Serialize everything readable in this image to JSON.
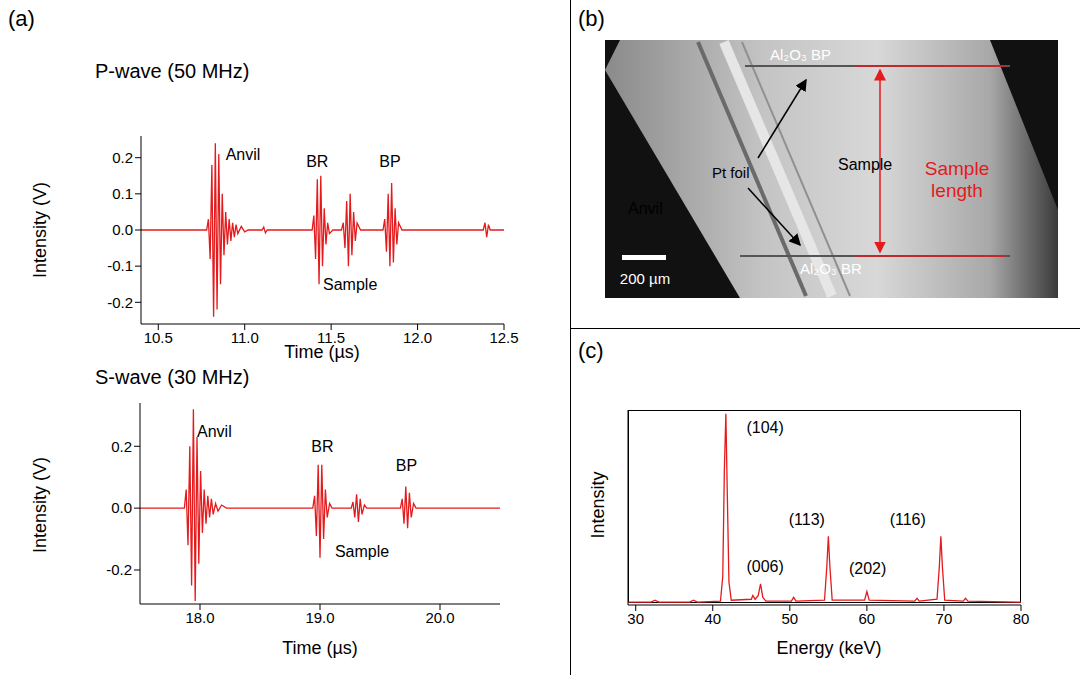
{
  "chart_data": [
    {
      "type": "line",
      "panel_label": "(a)",
      "title": "P-wave (50 MHz)",
      "x_label": "Time (µs)",
      "y_label": "Intensity (V)",
      "color": "#e41a1c",
      "xlim": [
        10.4,
        12.5
      ],
      "xticks": [
        10.5,
        {
          "value": 11,
          "label": "11.0"
        },
        11.5,
        {
          "value": 12,
          "label": "12.0"
        },
        12.5
      ],
      "ylim": [
        -0.26,
        0.26
      ],
      "yticks": [
        -0.2,
        -0.1,
        {
          "value": 0,
          "label": "0.0"
        },
        0.1,
        0.2
      ],
      "grid": false,
      "x": [
        10.4,
        10.78,
        10.79,
        10.8,
        10.81,
        10.82,
        10.83,
        10.84,
        10.85,
        10.86,
        10.87,
        10.88,
        10.89,
        10.9,
        10.91,
        10.92,
        10.93,
        10.94,
        10.95,
        10.96,
        10.98,
        11.0,
        11.02,
        11.1,
        11.11,
        11.12,
        11.13,
        11.39,
        11.4,
        11.41,
        11.42,
        11.43,
        11.44,
        11.45,
        11.46,
        11.47,
        11.48,
        11.49,
        11.51,
        11.56,
        11.57,
        11.58,
        11.59,
        11.6,
        11.61,
        11.62,
        11.63,
        11.64,
        11.65,
        11.67,
        11.8,
        11.81,
        11.82,
        11.83,
        11.84,
        11.85,
        11.86,
        11.87,
        11.88,
        11.89,
        11.91,
        12.38,
        12.39,
        12.4,
        12.41,
        12.42,
        12.5
      ],
      "values": [
        0,
        0,
        0.03,
        -0.08,
        0.18,
        -0.24,
        0.24,
        -0.22,
        0.21,
        -0.15,
        0.1,
        -0.07,
        0.05,
        -0.04,
        0.03,
        -0.03,
        0.02,
        -0.02,
        0.015,
        -0.01,
        0.01,
        -0.005,
        0,
        0,
        0.008,
        -0.008,
        0,
        0,
        0.04,
        -0.08,
        0.14,
        -0.15,
        0.15,
        -0.1,
        0.06,
        -0.04,
        0.02,
        -0.01,
        0,
        0,
        0.02,
        -0.05,
        0.08,
        -0.1,
        0.1,
        -0.07,
        0.05,
        -0.03,
        0.02,
        0,
        0,
        0.03,
        -0.06,
        0.1,
        -0.1,
        0.13,
        -0.09,
        0.06,
        -0.04,
        0.02,
        0,
        0,
        0.02,
        -0.02,
        0.015,
        0,
        0
      ],
      "annotations": [
        {
          "text": "Anvil",
          "x": 10.99,
          "y": 0.21
        },
        {
          "text": "BR",
          "x": 11.42,
          "y": 0.19
        },
        {
          "text": "Sample",
          "x": 11.61,
          "y": -0.15
        },
        {
          "text": "BP",
          "x": 11.84,
          "y": 0.19
        }
      ]
    },
    {
      "type": "line",
      "title": "S-wave (30 MHz)",
      "x_label": "Time (µs)",
      "y_label": "Intensity (V)",
      "color": "#e41a1c",
      "xlim": [
        17.5,
        20.5
      ],
      "xticks": [
        {
          "value": 18,
          "label": "18.0"
        },
        {
          "value": 19,
          "label": "19.0"
        },
        {
          "value": 20,
          "label": "20.0"
        }
      ],
      "ylim": [
        -0.31,
        0.34
      ],
      "yticks": [
        -0.2,
        {
          "value": 0,
          "label": "0.0"
        },
        0.2
      ],
      "grid": false,
      "x": [
        17.5,
        17.87,
        17.885,
        17.9,
        17.915,
        17.93,
        17.945,
        17.96,
        17.975,
        17.99,
        18.005,
        18.02,
        18.035,
        18.05,
        18.065,
        18.08,
        18.095,
        18.11,
        18.13,
        18.15,
        18.18,
        18.22,
        18.94,
        18.955,
        18.97,
        18.985,
        19.0,
        19.015,
        19.03,
        19.045,
        19.06,
        19.08,
        19.1,
        19.26,
        19.275,
        19.29,
        19.305,
        19.32,
        19.335,
        19.35,
        19.37,
        19.39,
        19.67,
        19.685,
        19.7,
        19.715,
        19.73,
        19.745,
        19.76,
        19.78,
        19.8,
        20.5
      ],
      "values": [
        0,
        0,
        0.06,
        -0.12,
        0.2,
        -0.25,
        0.32,
        -0.3,
        0.23,
        -0.18,
        0.12,
        -0.08,
        0.06,
        -0.05,
        0.04,
        -0.03,
        0.03,
        -0.02,
        0.015,
        -0.01,
        0.01,
        0,
        0,
        0.04,
        -0.09,
        0.14,
        -0.16,
        0.14,
        -0.1,
        0.06,
        -0.03,
        0.015,
        0,
        0,
        0.02,
        -0.03,
        0.045,
        -0.045,
        0.03,
        -0.02,
        0.01,
        0,
        0,
        0.03,
        -0.05,
        0.07,
        -0.065,
        0.05,
        -0.03,
        0.015,
        0,
        0
      ],
      "annotations": [
        {
          "text": "Anvil",
          "x": 18.12,
          "y": 0.25
        },
        {
          "text": "BR",
          "x": 19.02,
          "y": 0.2
        },
        {
          "text": "Sample",
          "x": 19.35,
          "y": -0.14
        },
        {
          "text": "BP",
          "x": 19.72,
          "y": 0.14
        }
      ]
    },
    {
      "type": "image",
      "panel_label": "(b)",
      "labels": {
        "top_line": "Al₂O₃ BP",
        "bottom_line": "Al₂O₃ BR",
        "foil": "Pt foil",
        "sample": "Sample",
        "anvil": "Anvil",
        "length": "Sample length",
        "scale_bar": "200 µm"
      }
    },
    {
      "type": "line",
      "panel_label": "(c)",
      "x_label": "Energy (keV)",
      "y_label": "Intensity",
      "color": "#e41a1c",
      "tick_labels": "x",
      "grid": false,
      "xlim": [
        29,
        80
      ],
      "xticks": [
        30,
        40,
        50,
        60,
        70,
        80
      ],
      "ylim": [
        0,
        1.02
      ],
      "x": [
        29,
        32,
        32.5,
        33,
        37,
        37.5,
        38,
        41,
        41.3,
        41.5,
        41.7,
        41.9,
        42.1,
        42.4,
        45,
        45.2,
        45.5,
        45.9,
        46.2,
        46.5,
        46.9,
        50.2,
        50.5,
        50.8,
        54.5,
        54.8,
        55.0,
        55.2,
        55.5,
        59.7,
        60.0,
        60.3,
        66.2,
        66.5,
        66.8,
        69.1,
        69.4,
        69.6,
        69.8,
        70.1,
        72.5,
        72.8,
        73.1,
        80
      ],
      "values": [
        0.015,
        0.015,
        0.025,
        0.015,
        0.015,
        0.025,
        0.015,
        0.02,
        0.15,
        0.7,
        1.0,
        0.55,
        0.12,
        0.025,
        0.03,
        0.05,
        0.03,
        0.05,
        0.11,
        0.04,
        0.02,
        0.02,
        0.04,
        0.02,
        0.025,
        0.2,
        0.36,
        0.2,
        0.025,
        0.025,
        0.07,
        0.025,
        0.02,
        0.035,
        0.02,
        0.03,
        0.2,
        0.36,
        0.2,
        0.025,
        0.02,
        0.035,
        0.02,
        0.015
      ],
      "annotations": [
        {
          "text": "(104)",
          "x": 46.8,
          "y": 0.93
        },
        {
          "text": "(006)",
          "x": 46.8,
          "y": 0.2
        },
        {
          "text": "(113)",
          "x": 52.2,
          "y": 0.45
        },
        {
          "text": "(202)",
          "x": 60.1,
          "y": 0.19
        },
        {
          "text": "(116)",
          "x": 65.3,
          "y": 0.45
        }
      ]
    }
  ]
}
